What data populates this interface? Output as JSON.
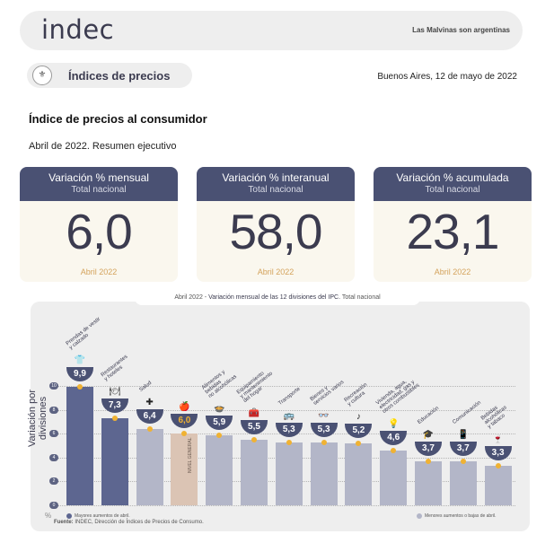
{
  "header": {
    "logo": "indec",
    "tagline": "Las Malvinas son argentinas"
  },
  "section": {
    "icon": "seal-icon",
    "title": "Índices de precios"
  },
  "date_place": "Buenos Aires, 12 de mayo de 2022",
  "document": {
    "title": "Índice de precios al consumidor",
    "subtitle": "Abril de 2022. Resumen ejecutivo"
  },
  "cards": [
    {
      "title": "Variación % mensual",
      "subtitle": "Total nacional",
      "value": "6,0",
      "period": "Abril 2022"
    },
    {
      "title": "Variación % interanual",
      "subtitle": "Total nacional",
      "value": "58,0",
      "period": "Abril 2022"
    },
    {
      "title": "Variación % acumulada",
      "subtitle": "Total nacional",
      "value": "23,1",
      "period": "Abril 2022"
    }
  ],
  "chart_data": {
    "type": "bar",
    "title_prefix": "Abril 2022 - ",
    "title_main": "Variación mensual de las 12 divisiones del IPC.",
    "title_suffix": " Total nacional",
    "ylabel": "Variación por divisiones",
    "y_unit": "%",
    "ylim": [
      0,
      10
    ],
    "yticks": [
      "0",
      "2",
      "4",
      "6",
      "8",
      "10"
    ],
    "grid": true,
    "categories": [
      "Prendas de vestir\ny calzado",
      "Restaurantes\ny hoteles",
      "Salud",
      "Alimentos y\nbebidas\nno alcohólicas",
      "Equipamiento\ny mantenimiento\ndel hogar",
      "Transporte",
      "Bienes y\nservicios varios",
      "Recreación\ny cultura",
      "Vivienda, agua,\nelectricidad, gas y\notros combustibles",
      "Educación",
      "Comunicación",
      "Bebidas\nalcohólicas\ny tabaco"
    ],
    "labels": [
      "9,9",
      "7,3",
      "6,4",
      "6,0",
      "5,9",
      "5,5",
      "5,3",
      "5,3",
      "5,2",
      "4,6",
      "3,7",
      "3,7",
      "3,3"
    ],
    "values": [
      9.9,
      7.3,
      6.4,
      6.0,
      5.9,
      5.5,
      5.3,
      5.3,
      5.2,
      4.6,
      3.7,
      3.7,
      3.3
    ],
    "groups": [
      "high",
      "high",
      "low",
      "total",
      "low",
      "low",
      "low",
      "low",
      "low",
      "low",
      "low",
      "low",
      "low"
    ],
    "total_label": "NIVEL\nGENERAL",
    "colors": {
      "high": "#5d6690",
      "low": "#b3b6c8",
      "total": "#dbc4b4",
      "dot": "#f0b233"
    },
    "legend_high": "Mayores aumentos de abril.",
    "legend_low": "Menores aumentos o bajas de abril.",
    "source_label": "Fuente:",
    "source_text": " INDEC, Dirección de Índices de Precios de Consumo."
  }
}
